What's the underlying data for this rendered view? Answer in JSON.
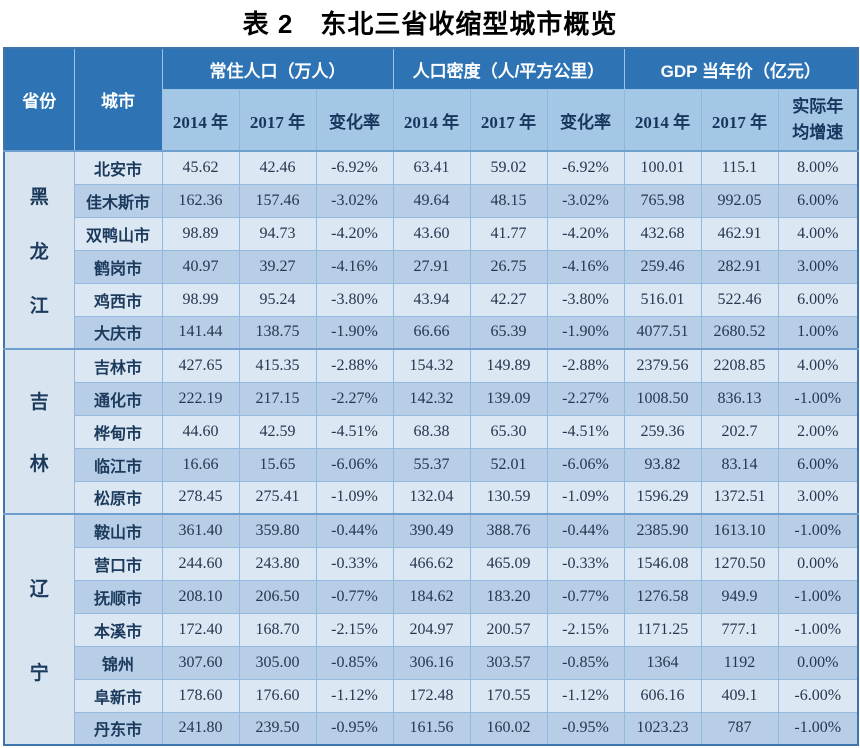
{
  "title": "表 2　东北三省收缩型城市概览",
  "colors": {
    "header_bg": "#2e74b5",
    "subheader_bg": "#a5c7e6",
    "row_light": "#dbe7f3",
    "row_medium": "#b8cde6",
    "province_bg": "#d8e5f1",
    "header_text": "#ffffff",
    "body_text": "#26364f",
    "border": "#93bade",
    "outer_border": "#3f74ad"
  },
  "table": {
    "header": {
      "province": "省份",
      "city": "城市",
      "groups": [
        {
          "label": "常住人口（万人）",
          "cols": [
            "2014 年",
            "2017 年",
            "变化率"
          ]
        },
        {
          "label": "人口密度（人/平方公里）",
          "cols": [
            "2014 年",
            "2017 年",
            "变化率"
          ]
        },
        {
          "label": "GDP 当年价（亿元）",
          "cols": [
            "2014 年",
            "2017 年",
            "实际年\n均增速"
          ]
        }
      ]
    },
    "provinces": [
      {
        "name": "黑龙江",
        "rows": [
          [
            "北安市",
            "45.62",
            "42.46",
            "-6.92%",
            "63.41",
            "59.02",
            "-6.92%",
            "100.01",
            "115.1",
            "8.00%"
          ],
          [
            "佳木斯市",
            "162.36",
            "157.46",
            "-3.02%",
            "49.64",
            "48.15",
            "-3.02%",
            "765.98",
            "992.05",
            "6.00%"
          ],
          [
            "双鸭山市",
            "98.89",
            "94.73",
            "-4.20%",
            "43.60",
            "41.77",
            "-4.20%",
            "432.68",
            "462.91",
            "4.00%"
          ],
          [
            "鹤岗市",
            "40.97",
            "39.27",
            "-4.16%",
            "27.91",
            "26.75",
            "-4.16%",
            "259.46",
            "282.91",
            "3.00%"
          ],
          [
            "鸡西市",
            "98.99",
            "95.24",
            "-3.80%",
            "43.94",
            "42.27",
            "-3.80%",
            "516.01",
            "522.46",
            "6.00%"
          ],
          [
            "大庆市",
            "141.44",
            "138.75",
            "-1.90%",
            "66.66",
            "65.39",
            "-1.90%",
            "4077.51",
            "2680.52",
            "1.00%"
          ]
        ]
      },
      {
        "name": "吉林",
        "rows": [
          [
            "吉林市",
            "427.65",
            "415.35",
            "-2.88%",
            "154.32",
            "149.89",
            "-2.88%",
            "2379.56",
            "2208.85",
            "4.00%"
          ],
          [
            "通化市",
            "222.19",
            "217.15",
            "-2.27%",
            "142.32",
            "139.09",
            "-2.27%",
            "1008.50",
            "836.13",
            "-1.00%"
          ],
          [
            "桦甸市",
            "44.60",
            "42.59",
            "-4.51%",
            "68.38",
            "65.30",
            "-4.51%",
            "259.36",
            "202.7",
            "2.00%"
          ],
          [
            "临江市",
            "16.66",
            "15.65",
            "-6.06%",
            "55.37",
            "52.01",
            "-6.06%",
            "93.82",
            "83.14",
            "6.00%"
          ],
          [
            "松原市",
            "278.45",
            "275.41",
            "-1.09%",
            "132.04",
            "130.59",
            "-1.09%",
            "1596.29",
            "1372.51",
            "3.00%"
          ]
        ]
      },
      {
        "name": "辽宁",
        "rows": [
          [
            "鞍山市",
            "361.40",
            "359.80",
            "-0.44%",
            "390.49",
            "388.76",
            "-0.44%",
            "2385.90",
            "1613.10",
            "-1.00%"
          ],
          [
            "营口市",
            "244.60",
            "243.80",
            "-0.33%",
            "466.62",
            "465.09",
            "-0.33%",
            "1546.08",
            "1270.50",
            "0.00%"
          ],
          [
            "抚顺市",
            "208.10",
            "206.50",
            "-0.77%",
            "184.62",
            "183.20",
            "-0.77%",
            "1276.58",
            "949.9",
            "-1.00%"
          ],
          [
            "本溪市",
            "172.40",
            "168.70",
            "-2.15%",
            "204.97",
            "200.57",
            "-2.15%",
            "1171.25",
            "777.1",
            "-1.00%"
          ],
          [
            "锦州",
            "307.60",
            "305.00",
            "-0.85%",
            "306.16",
            "303.57",
            "-0.85%",
            "1364",
            "1192",
            "0.00%"
          ],
          [
            "阜新市",
            "178.60",
            "176.60",
            "-1.12%",
            "172.48",
            "170.55",
            "-1.12%",
            "606.16",
            "409.1",
            "-6.00%"
          ],
          [
            "丹东市",
            "241.80",
            "239.50",
            "-0.95%",
            "161.56",
            "160.02",
            "-0.95%",
            "1023.23",
            "787",
            "-1.00%"
          ]
        ]
      }
    ]
  }
}
